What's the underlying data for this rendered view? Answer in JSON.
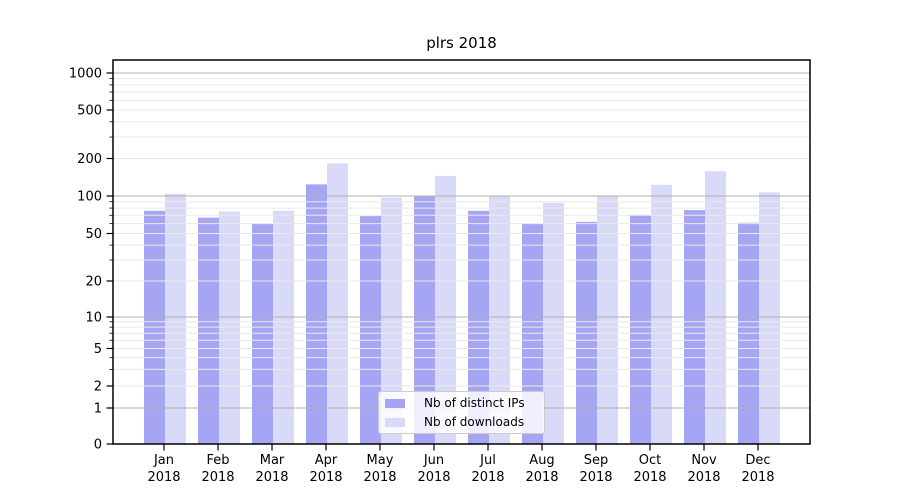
{
  "chart_data": {
    "type": "bar",
    "title": "plrs 2018",
    "categories": [
      "Jan 2018",
      "Feb 2018",
      "Mar 2018",
      "Apr 2018",
      "May 2018",
      "Jun 2018",
      "Jul 2018",
      "Aug 2018",
      "Sep 2018",
      "Oct 2018",
      "Nov 2018",
      "Dec 2018"
    ],
    "series": [
      {
        "name": "Nb of distinct IPs",
        "color": "#a5a5f3",
        "values": [
          76,
          67,
          60,
          124,
          69,
          99,
          76,
          60,
          62,
          70,
          77,
          61
        ]
      },
      {
        "name": "Nb of downloads",
        "color": "#d9d9f8",
        "values": [
          104,
          75,
          76,
          183,
          97,
          145,
          100,
          88,
          100,
          123,
          158,
          107
        ]
      }
    ],
    "y_ticks": [
      0,
      1,
      2,
      5,
      10,
      20,
      50,
      100,
      200,
      500,
      1000
    ],
    "y_scale": "log-with-zero",
    "ylim": [
      0,
      1276
    ],
    "xlabel": "",
    "ylabel": "",
    "grid": true,
    "legend_position": "lower-center"
  },
  "colors": {
    "bar_distinct_ips": "#a5a5f3",
    "bar_downloads": "#d9d9f8",
    "grid_major": "#b0b0b0",
    "grid_minor": "#e9e9e9",
    "axis": "#000000",
    "text": "#000000",
    "legend_border": "#cccccc"
  }
}
